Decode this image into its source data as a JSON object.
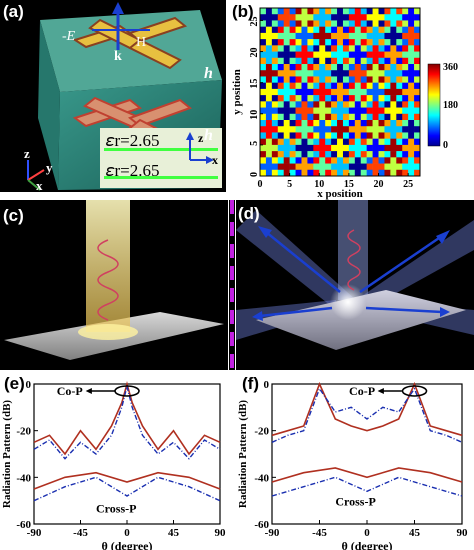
{
  "panels": {
    "a": {
      "label": "(a)",
      "field_labels": {
        "e": "-E",
        "h": "H",
        "k": "k"
      },
      "thickness_label": "h",
      "axes": {
        "z": "z",
        "y": "y",
        "x": "x"
      },
      "inset_axes": {
        "z": "z",
        "x": "x"
      },
      "permittivity": [
        "𝜀r=2.65",
        "𝜀r=2.65"
      ]
    },
    "b": {
      "label": "(b)",
      "xlabel": "x position",
      "ylabel": "y position",
      "xticks": [
        "0",
        "5",
        "10",
        "15",
        "20",
        "25"
      ],
      "yticks": [
        "0",
        "5",
        "10",
        "15",
        "20",
        "25"
      ],
      "colorbar_ticks": [
        "360",
        "180",
        "0"
      ]
    },
    "c": {
      "label": "(c)"
    },
    "d": {
      "label": "(d)"
    },
    "e": {
      "label": "(e)"
    },
    "f": {
      "label": "(f)"
    }
  },
  "colors": {
    "copol": "#b03020",
    "crosspol": "#1a2fb0",
    "dashed_divider": "#c020e0"
  },
  "chart_data": [
    {
      "type": "heatmap",
      "panel": "b",
      "title": "",
      "xlabel": "x position",
      "ylabel": "y position",
      "xlim": [
        0,
        27
      ],
      "ylim": [
        0,
        27
      ],
      "colorbar": {
        "min": 0,
        "max": 360,
        "ticks": [
          360,
          180,
          0
        ]
      },
      "pattern": "rotated-cross checkerboard phase distribution, values spanning 0–360"
    },
    {
      "type": "line",
      "panel": "e",
      "title": "",
      "xlabel": "θ (degree)",
      "ylabel": "Radiation Pattern (dB)",
      "xlim": [
        -90,
        90
      ],
      "ylim": [
        -60,
        0
      ],
      "xticks": [
        -90,
        -45,
        0,
        45,
        90
      ],
      "yticks": [
        0,
        -20,
        -40,
        -60
      ],
      "annotations": [
        "Co-P",
        "Cross-P"
      ],
      "series": [
        {
          "style": "solid-red",
          "x": [
            -90,
            -75,
            -60,
            -45,
            -30,
            -15,
            -5,
            0,
            5,
            15,
            30,
            45,
            60,
            75,
            90
          ],
          "y": [
            -25,
            -22,
            -30,
            -20,
            -28,
            -18,
            -8,
            0,
            -8,
            -18,
            -28,
            -20,
            -30,
            -22,
            -25
          ]
        },
        {
          "style": "dashdot-blue",
          "x": [
            -90,
            -75,
            -60,
            -45,
            -30,
            -15,
            -5,
            0,
            5,
            15,
            30,
            45,
            60,
            75,
            90
          ],
          "y": [
            -28,
            -24,
            -32,
            -25,
            -30,
            -22,
            -10,
            -1,
            -10,
            -22,
            -30,
            -25,
            -32,
            -24,
            -28
          ]
        },
        {
          "style": "solid-red",
          "x": [
            -90,
            -60,
            -30,
            0,
            30,
            60,
            90
          ],
          "y": [
            -45,
            -40,
            -38,
            -42,
            -38,
            -40,
            -45
          ]
        },
        {
          "style": "dashdot-blue",
          "x": [
            -90,
            -60,
            -30,
            0,
            30,
            60,
            90
          ],
          "y": [
            -50,
            -44,
            -40,
            -48,
            -40,
            -44,
            -50
          ]
        }
      ]
    },
    {
      "type": "line",
      "panel": "f",
      "title": "",
      "xlabel": "θ (degree)",
      "ylabel": "Radiation Pattern (dB)",
      "xlim": [
        -90,
        90
      ],
      "ylim": [
        -60,
        0
      ],
      "xticks": [
        -90,
        -45,
        0,
        45,
        90
      ],
      "yticks": [
        0,
        -20,
        -40,
        -60
      ],
      "annotations": [
        "Co-P",
        "Cross-P"
      ],
      "series": [
        {
          "style": "solid-red",
          "x": [
            -90,
            -75,
            -60,
            -45,
            -30,
            -15,
            0,
            15,
            30,
            45,
            60,
            75,
            90
          ],
          "y": [
            -22,
            -20,
            -18,
            0,
            -15,
            -18,
            -20,
            -18,
            -15,
            0,
            -18,
            -20,
            -22
          ]
        },
        {
          "style": "dashdot-blue",
          "x": [
            -90,
            -75,
            -60,
            -45,
            -30,
            -15,
            0,
            15,
            30,
            45,
            60,
            75,
            90
          ],
          "y": [
            -25,
            -22,
            -20,
            -2,
            -12,
            -10,
            -15,
            -10,
            -12,
            -2,
            -20,
            -22,
            -25
          ]
        },
        {
          "style": "solid-red",
          "x": [
            -90,
            -60,
            -30,
            0,
            30,
            60,
            90
          ],
          "y": [
            -42,
            -38,
            -36,
            -40,
            -36,
            -38,
            -42
          ]
        },
        {
          "style": "dashdot-blue",
          "x": [
            -90,
            -60,
            -30,
            0,
            30,
            60,
            90
          ],
          "y": [
            -48,
            -44,
            -40,
            -46,
            -40,
            -44,
            -48
          ]
        }
      ]
    }
  ]
}
